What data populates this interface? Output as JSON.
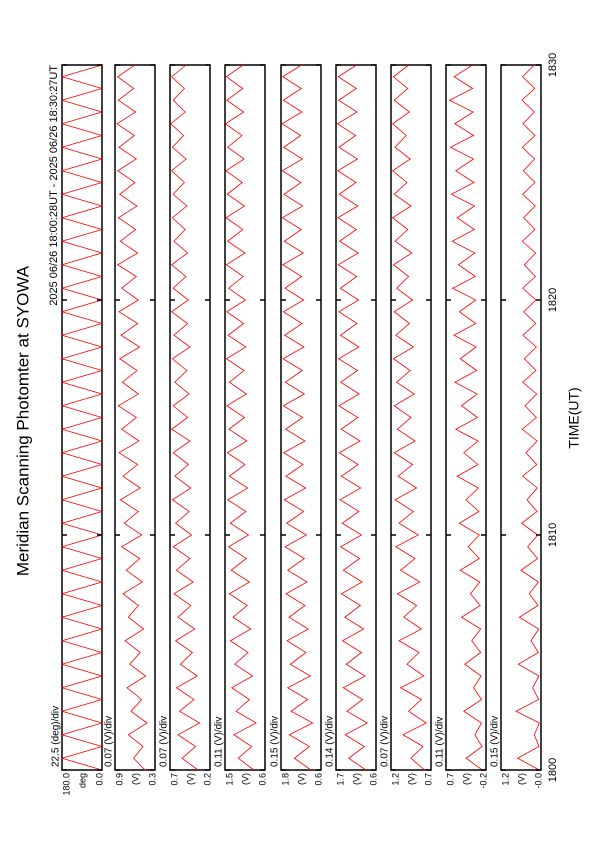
{
  "chart_data": {
    "type": "line",
    "title": "Meridian Scanning Photomter at SYOWA",
    "subtitle": "2025 06/26 18:00:28UT - 2025 06/26 18:30:27UT",
    "xlabel": "TIME(UT)",
    "xlim": [
      1800,
      1830
    ],
    "xticks": [
      1800,
      1810,
      1820,
      1830
    ],
    "x": [
      1800,
      1800.5,
      1801,
      1801.5,
      1802,
      1802.5,
      1803,
      1803.5,
      1804,
      1804.5,
      1805,
      1805.5,
      1806,
      1806.5,
      1807,
      1807.5,
      1808,
      1808.5,
      1809,
      1809.5,
      1810,
      1810.5,
      1811,
      1811.5,
      1812,
      1812.5,
      1813,
      1813.5,
      1814,
      1814.5,
      1815,
      1815.5,
      1816,
      1816.5,
      1817,
      1817.5,
      1818,
      1818.5,
      1819,
      1819.5,
      1820,
      1820.5,
      1821,
      1821.5,
      1822,
      1822.5,
      1823,
      1823.5,
      1824,
      1824.5,
      1825,
      1825.5,
      1826,
      1826.5,
      1827,
      1827.5,
      1828,
      1828.5,
      1829,
      1829.5,
      1830
    ],
    "panels": [
      {
        "scale_label": "22.5 (deg)/div",
        "unit": "deg",
        "ylim": [
          0,
          180
        ],
        "yticks": [
          {
            "value": 0,
            "label": "0.0"
          },
          {
            "value": 180,
            "label": "180.0"
          }
        ],
        "series": [
          {
            "color": "#ff0000",
            "values": [
              0,
              180,
              0,
              180,
              0,
              180,
              0,
              180,
              0,
              180,
              0,
              180,
              0,
              180,
              0,
              180,
              0,
              180,
              0,
              180,
              0,
              180,
              0,
              180,
              0,
              180,
              0,
              180,
              0,
              180,
              0,
              180,
              0,
              180,
              0,
              180,
              0,
              180,
              0,
              180,
              0,
              180,
              0,
              180,
              0,
              180,
              0,
              180,
              0,
              180,
              0,
              180,
              0,
              180,
              0,
              180,
              0,
              180,
              0,
              180,
              0
            ]
          }
        ]
      },
      {
        "scale_label": "0.07 (V)/div",
        "unit": "(V)",
        "ylim": [
          0.3,
          0.9
        ],
        "yticks": [
          0.3,
          0.9
        ],
        "series": [
          {
            "color": "#ff0000",
            "values": [
              0.45,
              0.62,
              0.48,
              0.7,
              0.42,
              0.66,
              0.5,
              0.72,
              0.44,
              0.68,
              0.52,
              0.75,
              0.47,
              0.7,
              0.55,
              0.78,
              0.49,
              0.73,
              0.53,
              0.8,
              0.5,
              0.76,
              0.55,
              0.82,
              0.52,
              0.78,
              0.56,
              0.84,
              0.54,
              0.8,
              0.58,
              0.85,
              0.55,
              0.79,
              0.57,
              0.83,
              0.53,
              0.81,
              0.56,
              0.84,
              0.55,
              0.8,
              0.58,
              0.86,
              0.56,
              0.82,
              0.59,
              0.85,
              0.57,
              0.83,
              0.6,
              0.86,
              0.58,
              0.84,
              0.61,
              0.87,
              0.59,
              0.85,
              0.62,
              0.86,
              0.6
            ]
          }
        ]
      },
      {
        "scale_label": "0.07 (V)/div",
        "unit": "(V)",
        "ylim": [
          0.2,
          0.7
        ],
        "yticks": [
          0.2,
          0.7
        ],
        "series": [
          {
            "color": "#ff0000",
            "values": [
              0.35,
              0.55,
              0.38,
              0.6,
              0.33,
              0.58,
              0.4,
              0.62,
              0.36,
              0.57,
              0.42,
              0.63,
              0.39,
              0.6,
              0.44,
              0.65,
              0.41,
              0.62,
              0.45,
              0.66,
              0.43,
              0.63,
              0.46,
              0.67,
              0.44,
              0.64,
              0.47,
              0.66,
              0.45,
              0.68,
              0.48,
              0.66,
              0.46,
              0.64,
              0.49,
              0.67,
              0.45,
              0.65,
              0.48,
              0.68,
              0.47,
              0.66,
              0.5,
              0.68,
              0.48,
              0.65,
              0.51,
              0.67,
              0.49,
              0.66,
              0.52,
              0.68,
              0.5,
              0.67,
              0.53,
              0.69,
              0.51,
              0.66,
              0.52,
              0.68,
              0.5
            ]
          }
        ]
      },
      {
        "scale_label": "0.11 (V)/div",
        "unit": "(V)",
        "ylim": [
          0.6,
          1.5
        ],
        "yticks": [
          0.6,
          1.5
        ],
        "series": [
          {
            "color": "#ff0000",
            "values": [
              0.85,
              1.2,
              0.9,
              1.3,
              0.8,
              1.25,
              0.95,
              1.35,
              0.88,
              1.28,
              0.98,
              1.38,
              0.92,
              1.32,
              1.0,
              1.4,
              0.95,
              1.36,
              1.02,
              1.42,
              0.97,
              1.38,
              1.03,
              1.44,
              0.99,
              1.4,
              1.05,
              1.45,
              1.01,
              1.41,
              1.06,
              1.46,
              1.02,
              1.4,
              1.07,
              1.47,
              1.03,
              1.43,
              1.08,
              1.46,
              1.04,
              1.42,
              1.09,
              1.47,
              1.05,
              1.44,
              1.1,
              1.48,
              1.06,
              1.45,
              1.11,
              1.48,
              1.07,
              1.44,
              1.12,
              1.49,
              1.08,
              1.46,
              1.1,
              1.47,
              1.09
            ]
          }
        ]
      },
      {
        "scale_label": "0.15 (V)/div",
        "unit": "(V)",
        "ylim": [
          0.6,
          1.8
        ],
        "yticks": [
          0.6,
          1.8
        ],
        "series": [
          {
            "color": "#ff0000",
            "values": [
              0.9,
              1.4,
              0.95,
              1.55,
              0.85,
              1.5,
              1.0,
              1.6,
              0.92,
              1.52,
              1.05,
              1.62,
              0.98,
              1.56,
              1.08,
              1.65,
              1.02,
              1.6,
              1.1,
              1.68,
              1.04,
              1.63,
              1.12,
              1.7,
              1.06,
              1.65,
              1.14,
              1.72,
              1.08,
              1.66,
              1.15,
              1.73,
              1.1,
              1.67,
              1.16,
              1.74,
              1.11,
              1.69,
              1.17,
              1.73,
              1.12,
              1.68,
              1.18,
              1.75,
              1.13,
              1.7,
              1.19,
              1.76,
              1.15,
              1.71,
              1.2,
              1.76,
              1.16,
              1.72,
              1.21,
              1.77,
              1.17,
              1.73,
              1.19,
              1.75,
              1.18
            ]
          }
        ]
      },
      {
        "scale_label": "0.14 (V)/div",
        "unit": "(V)",
        "ylim": [
          0.6,
          1.7
        ],
        "yticks": [
          0.6,
          1.7
        ],
        "series": [
          {
            "color": "#ff0000",
            "values": [
              0.88,
              1.35,
              0.92,
              1.45,
              0.84,
              1.4,
              0.97,
              1.5,
              0.9,
              1.42,
              1.0,
              1.52,
              0.94,
              1.46,
              1.03,
              1.55,
              0.98,
              1.5,
              1.05,
              1.57,
              1.0,
              1.53,
              1.07,
              1.59,
              1.02,
              1.55,
              1.09,
              1.61,
              1.04,
              1.56,
              1.1,
              1.62,
              1.06,
              1.57,
              1.11,
              1.63,
              1.07,
              1.58,
              1.12,
              1.62,
              1.08,
              1.58,
              1.13,
              1.64,
              1.09,
              1.6,
              1.14,
              1.65,
              1.1,
              1.61,
              1.15,
              1.65,
              1.11,
              1.62,
              1.16,
              1.66,
              1.12,
              1.63,
              1.14,
              1.64,
              1.13
            ]
          }
        ]
      },
      {
        "scale_label": "0.07 (V)/div",
        "unit": "(V)",
        "ylim": [
          0.7,
          1.2
        ],
        "yticks": [
          0.7,
          1.2
        ],
        "series": [
          {
            "color": "#ff0000",
            "values": [
              0.78,
              0.95,
              0.8,
              1.05,
              0.76,
              0.98,
              0.82,
              1.08,
              0.79,
              1.0,
              0.85,
              1.1,
              0.82,
              1.04,
              0.88,
              1.12,
              0.84,
              1.08,
              0.9,
              1.14,
              0.86,
              1.1,
              0.92,
              1.15,
              0.88,
              1.11,
              0.93,
              1.16,
              0.9,
              1.12,
              0.95,
              1.16,
              0.91,
              1.13,
              0.96,
              1.17,
              0.92,
              1.14,
              0.97,
              1.16,
              0.93,
              1.13,
              0.98,
              1.17,
              0.94,
              1.15,
              0.99,
              1.18,
              0.95,
              1.16,
              1.0,
              1.18,
              0.96,
              1.15,
              1.01,
              1.18,
              0.97,
              1.16,
              0.99,
              1.17,
              0.98
            ]
          }
        ]
      },
      {
        "scale_label": "0.11 (V)/div",
        "unit": "(V)",
        "ylim": [
          -0.2,
          0.7
        ],
        "yticks": [
          -0.2,
          0.7
        ],
        "series": [
          {
            "color": "#ff0000",
            "values": [
              -0.12,
              0.25,
              -0.11,
              0.05,
              -0.1,
              0.3,
              -0.1,
              0.08,
              -0.09,
              0.28,
              -0.08,
              0.12,
              -0.08,
              0.35,
              -0.07,
              0.15,
              -0.06,
              0.38,
              -0.05,
              0.2,
              -0.05,
              0.4,
              -0.04,
              0.25,
              -0.03,
              0.45,
              -0.02,
              0.3,
              -0.02,
              0.48,
              -0.01,
              0.35,
              0.0,
              0.5,
              0.01,
              0.38,
              0.02,
              0.52,
              0.03,
              0.4,
              0.03,
              0.55,
              0.04,
              0.42,
              0.05,
              0.56,
              0.06,
              0.45,
              0.06,
              0.58,
              0.07,
              0.48,
              0.08,
              0.6,
              0.08,
              0.5,
              0.09,
              0.62,
              0.1,
              0.52,
              0.1
            ]
          }
        ]
      },
      {
        "scale_label": "0.15 (V)/div",
        "unit": "(V)",
        "ylim": [
          0,
          1.2
        ],
        "yticks": [
          {
            "value": 0,
            "label": "-0.0"
          },
          1.2
        ],
        "series": [
          {
            "color": "#ff0000",
            "values": [
              0.05,
              0.7,
              0.06,
              0.2,
              0.05,
              0.75,
              0.07,
              0.25,
              0.06,
              0.68,
              0.08,
              0.3,
              0.07,
              0.65,
              0.09,
              0.35,
              0.08,
              0.6,
              0.1,
              0.4,
              0.1,
              0.58,
              0.12,
              0.42,
              0.11,
              0.55,
              0.13,
              0.45,
              0.12,
              0.56,
              0.14,
              0.48,
              0.13,
              0.55,
              0.15,
              0.5,
              0.14,
              0.54,
              0.16,
              0.52,
              0.15,
              0.55,
              0.17,
              0.5,
              0.16,
              0.56,
              0.18,
              0.52,
              0.17,
              0.55,
              0.18,
              0.53,
              0.19,
              0.56,
              0.18,
              0.54,
              0.2,
              0.57,
              0.19,
              0.55,
              0.2
            ]
          }
        ]
      }
    ]
  }
}
